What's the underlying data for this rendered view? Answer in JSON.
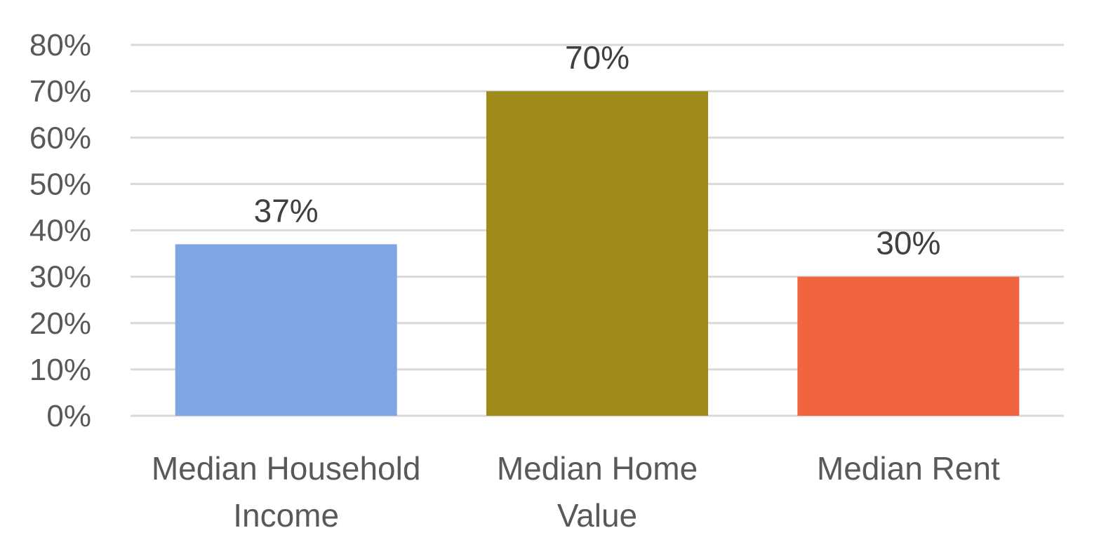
{
  "chart_data": {
    "type": "bar",
    "categories": [
      "Median Household Income",
      "Median Home Value",
      "Median Rent"
    ],
    "category_label_lines": [
      [
        "Median Household",
        "Income"
      ],
      [
        "Median Home",
        "Value"
      ],
      [
        "Median Rent"
      ]
    ],
    "values": [
      37,
      70,
      30
    ],
    "data_labels": [
      "37%",
      "70%",
      "30%"
    ],
    "bar_colors": [
      "#7fa6e3",
      "#9e8b19",
      "#f0653f"
    ],
    "y_ticks": [
      0,
      10,
      20,
      30,
      40,
      50,
      60,
      70,
      80
    ],
    "y_tick_labels": [
      "0%",
      "10%",
      "20%",
      "30%",
      "40%",
      "50%",
      "60%",
      "70%",
      "80%"
    ],
    "ylim": [
      0,
      80
    ],
    "title": "",
    "xlabel": "",
    "ylabel": "",
    "grid": true,
    "legend": "none",
    "gridline_color": "#d9d9d9",
    "label_color": "#595959"
  }
}
